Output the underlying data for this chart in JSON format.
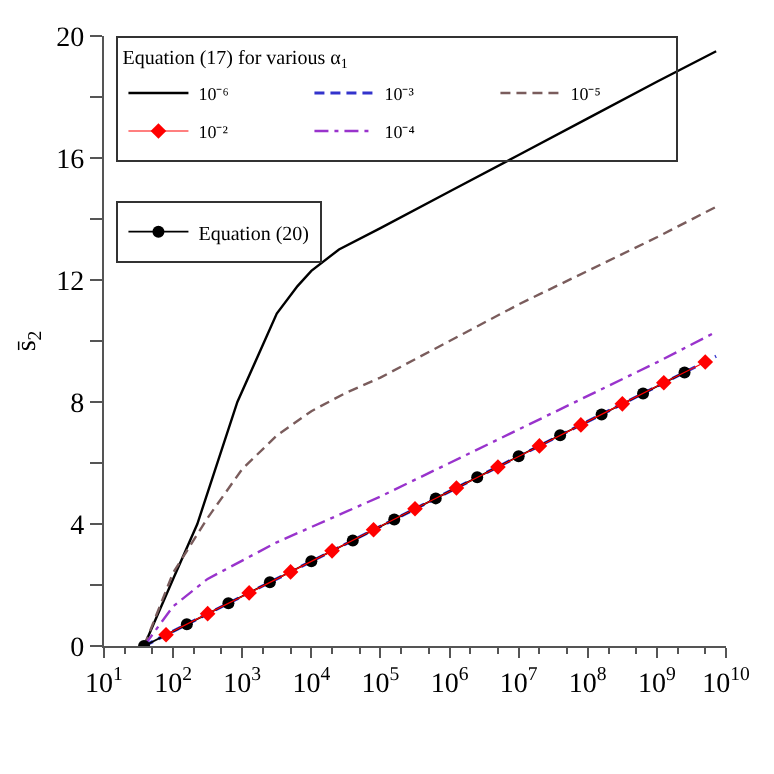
{
  "chart_data": {
    "type": "line",
    "ylabel": "s̄$_{2}$",
    "legend_title": "Equation (17) for various α$_{1}$",
    "log": "x",
    "legend": "top left",
    "xlim": [
      10,
      10000000000.0
    ],
    "ylim": [
      0,
      20
    ],
    "xticks": [
      {
        "value": 10,
        "label": "10$^{1}$"
      },
      {
        "value": 100,
        "label": "10$^{2}$"
      },
      {
        "value": 1000,
        "label": "10$^{3}$"
      },
      {
        "value": 10000.0,
        "label": "10$^{4}$"
      },
      {
        "value": 100000.0,
        "label": "10$^{5}$"
      },
      {
        "value": 1000000.0,
        "label": "10$^{6}$"
      },
      {
        "value": 10000000.0,
        "label": "10$^{7}$"
      },
      {
        "value": 100000000.0,
        "label": "10$^{8}$"
      },
      {
        "value": 1000000000.0,
        "label": "10$^{9}$"
      },
      {
        "value": 10000000000.0,
        "label": "10$^{10}$"
      }
    ],
    "yticks": [
      0,
      {
        "value": 2,
        "label": null
      },
      4,
      {
        "value": 6,
        "label": null
      },
      8,
      {
        "value": 10,
        "label": null
      },
      12,
      {
        "value": 14,
        "label": null
      },
      16,
      {
        "value": 18,
        "label": null
      },
      20
    ],
    "series": [
      {
        "name": "10⁻⁶",
        "color": "#000000",
        "line_style": "solid",
        "marker": "none",
        "x": [
          38,
          100,
          224,
          851,
          3162,
          6310,
          10000.0,
          25119,
          100000.0,
          1000000.0,
          10000000.0,
          100000000.0,
          1000000000.0,
          7200000000.0
        ],
        "values": [
          0,
          2.2,
          4.0,
          8.0,
          10.9,
          11.8,
          12.3,
          13.0,
          13.7,
          14.9,
          16.1,
          17.3,
          18.5,
          19.5
        ]
      },
      {
        "name": "10⁻⁵",
        "color": "#7a5c5c",
        "line_style": "dashed",
        "marker": "none",
        "x": [
          38,
          100,
          316,
          1000,
          3162,
          10000.0,
          31623,
          100000.0,
          1000000.0,
          10000000.0,
          100000000.0,
          1000000000.0,
          7200000000.0
        ],
        "values": [
          0,
          2.4,
          4.2,
          5.8,
          6.9,
          7.7,
          8.3,
          8.8,
          10.0,
          11.2,
          12.3,
          13.4,
          14.4
        ]
      },
      {
        "name": "10⁻⁴",
        "color": "#9933cc",
        "line_style": "dashdot",
        "marker": "none",
        "x": [
          38,
          100,
          316,
          1000,
          3162,
          10000.0,
          100000.0,
          1000000.0,
          10000000.0,
          100000000.0,
          1000000000.0,
          7200000000.0
        ],
        "values": [
          0,
          1.3,
          2.2,
          2.8,
          3.4,
          3.9,
          4.9,
          6.0,
          7.1,
          8.2,
          9.3,
          10.3
        ]
      },
      {
        "name": "10⁻³",
        "color": "#3333cc",
        "line_style": "dashed",
        "marker": "none",
        "x": [
          38,
          1000,
          100000.0,
          10000000.0,
          1000000000.0,
          7200000000.0
        ],
        "values": [
          0,
          1.63,
          3.92,
          6.22,
          8.51,
          9.5
        ]
      },
      {
        "name": "10⁻²",
        "color": "#ff0000",
        "line_style": "solid",
        "marker": "diamond",
        "x": [
          79,
          316,
          1259,
          5012,
          19953,
          79433,
          316228,
          1259000.0,
          5012000.0,
          19950000.0,
          79430000.0,
          316200000.0,
          1259000000.0,
          5012000000.0
        ],
        "values": [
          0.37,
          1.06,
          1.74,
          2.43,
          3.12,
          3.81,
          4.5,
          5.18,
          5.87,
          6.56,
          7.25,
          7.94,
          8.63,
          9.31
        ]
      },
      {
        "name": "Equation (20)",
        "color": "#000000",
        "line_style": "solid",
        "marker": "circle",
        "x": [
          38,
          158,
          631,
          2512,
          10000.0,
          39811,
          158489,
          630957,
          2512000.0,
          10000000.0,
          39810000.0,
          158500000.0,
          631000000.0,
          2512000000.0
        ],
        "values": [
          0,
          0.71,
          1.4,
          2.09,
          2.78,
          3.46,
          4.15,
          4.84,
          5.53,
          6.22,
          6.91,
          7.59,
          8.28,
          8.97
        ]
      }
    ]
  }
}
